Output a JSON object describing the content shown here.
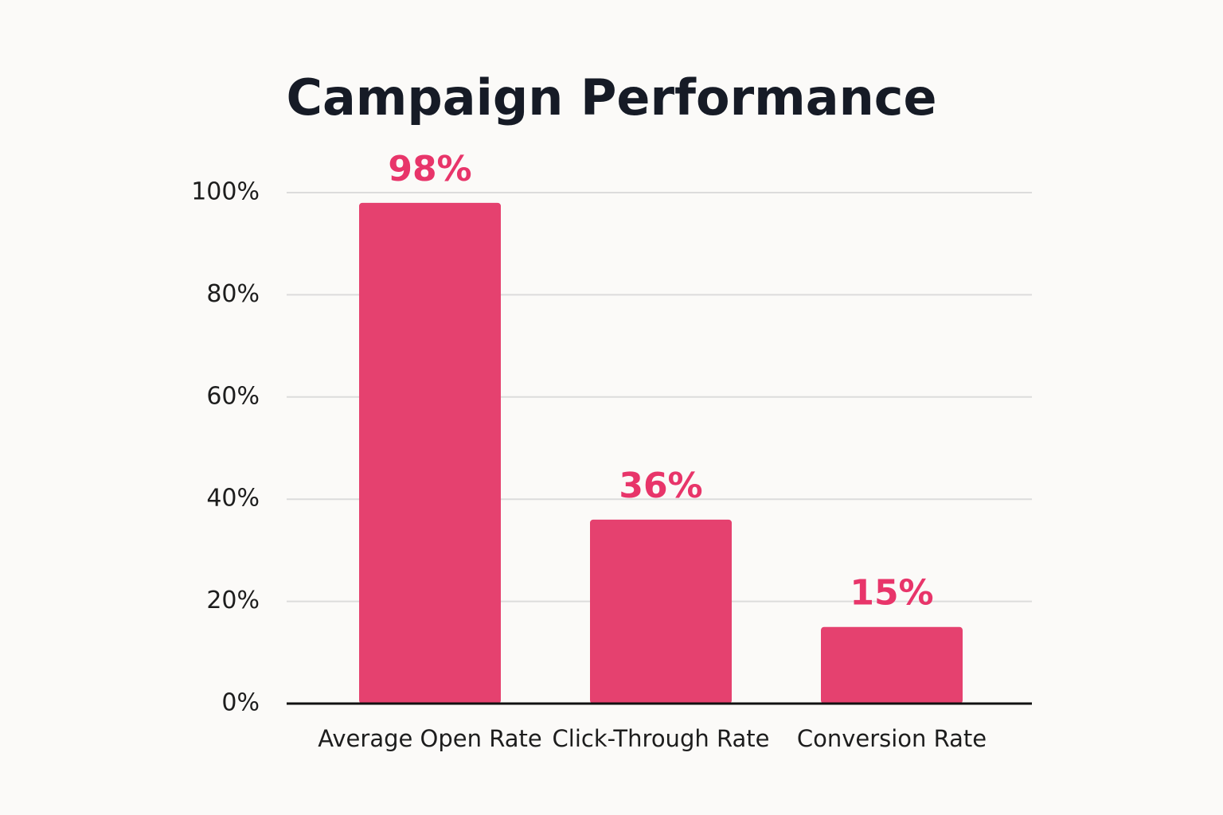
{
  "chart_data": {
    "type": "bar",
    "title": "Campaign Performance",
    "categories": [
      "Average Open Rate",
      "Click-Through Rate",
      "Conversion Rate"
    ],
    "values": [
      98,
      36,
      15
    ],
    "value_labels": [
      "98%",
      "36%",
      "15%"
    ],
    "color": "#e5416f",
    "ylim": [
      0,
      100
    ],
    "yticks": [
      {
        "value": 0,
        "label": "0%"
      },
      {
        "value": 20,
        "label": "20%"
      },
      {
        "value": 40,
        "label": "40%"
      },
      {
        "value": 60,
        "label": "60%"
      },
      {
        "value": 80,
        "label": "80%"
      },
      {
        "value": 100,
        "label": "100%"
      }
    ],
    "grid": true
  }
}
